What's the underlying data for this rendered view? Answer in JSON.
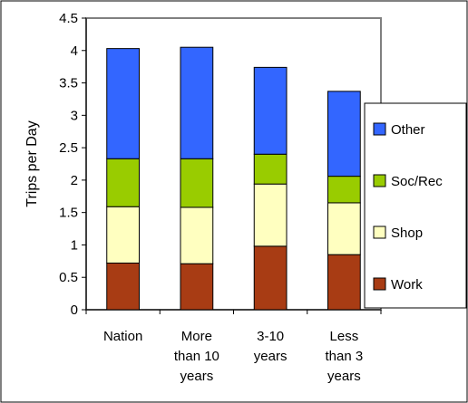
{
  "chart_data": {
    "type": "bar",
    "stacked": true,
    "title": "",
    "xlabel": "",
    "ylabel": "Trips per Day",
    "ylim": [
      0,
      4.5
    ],
    "ytick_step": 0.5,
    "yticks": [
      "0",
      "0.5",
      "1",
      "1.5",
      "2",
      "2.5",
      "3",
      "3.5",
      "4",
      "4.5"
    ],
    "grid": false,
    "legend": "right",
    "categories": [
      [
        "Nation"
      ],
      [
        "More",
        "than 10",
        "years"
      ],
      [
        "3-10",
        "years"
      ],
      [
        "Less",
        "than 3",
        "years"
      ]
    ],
    "series": [
      {
        "name": "Work",
        "color": "#a83c14",
        "values": [
          0.72,
          0.71,
          0.98,
          0.85
        ]
      },
      {
        "name": "Shop",
        "color": "#ffffc0",
        "values": [
          0.87,
          0.87,
          0.96,
          0.8
        ]
      },
      {
        "name": "Soc/Rec",
        "color": "#99cc00",
        "values": [
          0.74,
          0.75,
          0.46,
          0.41
        ]
      },
      {
        "name": "Other",
        "color": "#3366ff",
        "values": [
          1.7,
          1.72,
          1.34,
          1.31
        ]
      }
    ]
  }
}
